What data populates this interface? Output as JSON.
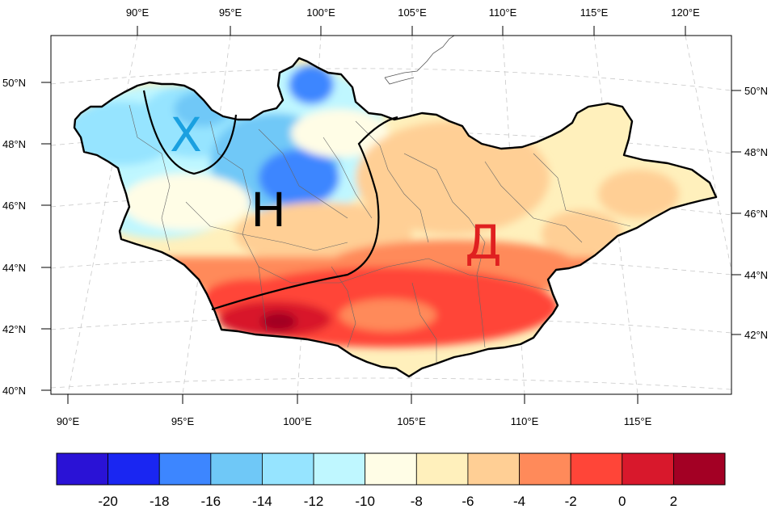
{
  "map": {
    "top_lon_labels": [
      "90°E",
      "95°E",
      "100°E",
      "105°E",
      "110°E",
      "115°E",
      "120°E"
    ],
    "bottom_lon_labels": [
      "90°E",
      "95°E",
      "100°E",
      "105°E",
      "110°E",
      "115°E"
    ],
    "left_lat_labels": [
      "50°N",
      "48°N",
      "46°N",
      "44°N",
      "42°N",
      "40°N"
    ],
    "right_lat_labels": [
      "50°N",
      "48°N",
      "46°N",
      "44°N",
      "42°N"
    ],
    "zone_labels": [
      {
        "text": "Х",
        "color": "#1aa0e0"
      },
      {
        "text": "Н",
        "color": "#000000"
      },
      {
        "text": "Д",
        "color": "#e02020"
      }
    ]
  },
  "colorbar": {
    "colors": [
      "#2a12d6",
      "#1a26f2",
      "#3d86ff",
      "#6fc8f7",
      "#96e4ff",
      "#bff7ff",
      "#fffde6",
      "#fff0bc",
      "#ffcf95",
      "#ff8a5a",
      "#ff4538",
      "#d8182c",
      "#a30024"
    ],
    "tick_labels": [
      "-20",
      "-18",
      "-16",
      "-14",
      "-12",
      "-10",
      "-8",
      "-6",
      "-4",
      "-2",
      "0",
      "2"
    ]
  }
}
